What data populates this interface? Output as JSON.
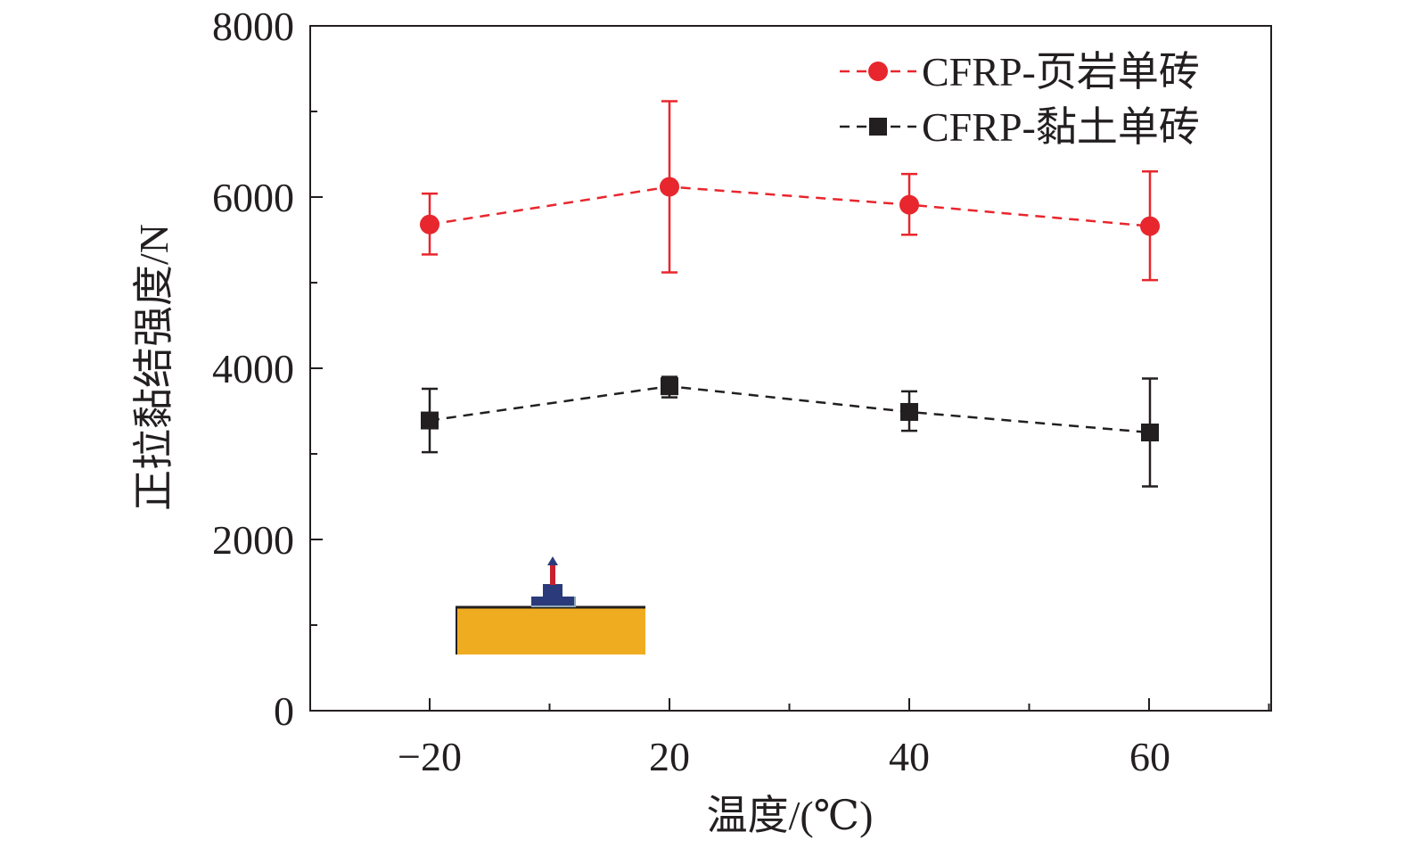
{
  "chart_data": {
    "type": "line",
    "title": "",
    "xlabel": "温度/(℃)",
    "ylabel": "正拉黏结强度/N",
    "categories": [
      "−20",
      "20",
      "40",
      "60"
    ],
    "ylim": [
      0,
      8000
    ],
    "yticks": [
      "0",
      "2000",
      "4000",
      "6000",
      "8000"
    ],
    "grid": false,
    "legend_position": "top-right",
    "series": [
      {
        "name": "CFRP-页岩单砖",
        "color": "#e8262d",
        "marker": "circle",
        "line_style": "dashed",
        "values": [
          5680,
          6120,
          5910,
          5660
        ],
        "error_low": [
          5330,
          5120,
          5560,
          5030
        ],
        "error_high": [
          6040,
          7120,
          6270,
          6300
        ]
      },
      {
        "name": "CFRP-黏土单砖",
        "color": "#231f20",
        "marker": "square",
        "line_style": "dashed",
        "values": [
          3390,
          3790,
          3490,
          3250
        ],
        "error_low": [
          3020,
          3660,
          3270,
          2620
        ],
        "error_high": [
          3760,
          3900,
          3730,
          3880
        ]
      }
    ]
  },
  "inset": {
    "name": "pull-off-test-schematic",
    "brick_color": "#f0ac21",
    "fixture_color": "#2b3a7a",
    "bolt_color": "#c8202e"
  }
}
